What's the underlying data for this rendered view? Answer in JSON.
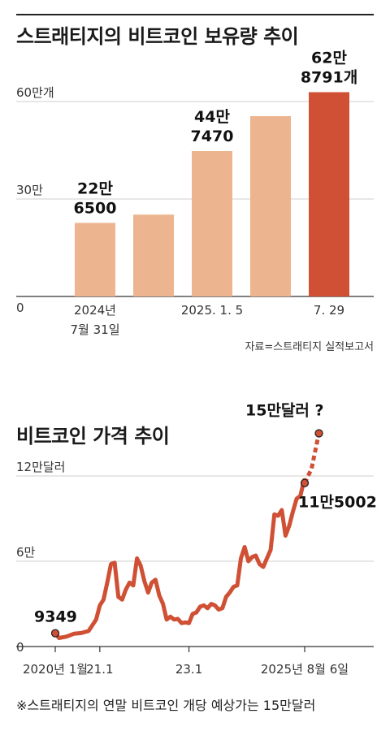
{
  "chart_data": [
    {
      "type": "bar",
      "title": "스트래티지의 비트코인 보유량 추이",
      "source": "자료=스트래티지 실적보고서",
      "y_ticks": [
        "0",
        "30만",
        "60만개"
      ],
      "y_tick_values": [
        0,
        300000,
        600000
      ],
      "ylim": [
        0,
        700000
      ],
      "grid": true,
      "categories": [
        "2024년 7월 31일",
        "",
        "2025. 1. 5",
        "",
        "7. 29"
      ],
      "x_labels": [
        [
          "2024년",
          "7월 31일"
        ],
        [
          ""
        ],
        [
          "2025. 1. 5"
        ],
        [
          ""
        ],
        [
          "7. 29"
        ]
      ],
      "values": [
        226500,
        252000,
        447470,
        555000,
        628791
      ],
      "data_labels": [
        [
          "22만",
          "6500"
        ],
        [],
        [
          "44만",
          "7470"
        ],
        [],
        [
          "62만",
          "8791개"
        ]
      ],
      "highlight_index": 4,
      "colors": {
        "bar": "#ecb590",
        "highlight": "#cf5034"
      }
    },
    {
      "type": "line",
      "title": "비트코인 가격 추이",
      "y_ticks": [
        "0",
        "6만",
        "12만달러"
      ],
      "y_tick_values": [
        0,
        60000,
        120000
      ],
      "ylim": [
        0,
        135000
      ],
      "grid": true,
      "x_ticks": [
        "2020년 1월",
        "21.1",
        "23.1",
        "2025년 8월 6일"
      ],
      "x_tick_values": [
        "2020-01",
        "2021-01",
        "2023-01",
        "2025-08-06"
      ],
      "annotations": [
        {
          "x": "2020-01",
          "y": 9349,
          "text": "9349"
        },
        {
          "x": "2025-08-06",
          "y": 115002,
          "text": "11만5002"
        },
        {
          "x": "2025-12",
          "y": 150000,
          "text": "15만달러 ?",
          "projected": true
        }
      ],
      "series": [
        {
          "values": [
            [
              "2020-01",
              9349
            ],
            [
              "2020-02",
              6000
            ],
            [
              "2020-04",
              7000
            ],
            [
              "2020-06",
              9000
            ],
            [
              "2020-08",
              9500
            ],
            [
              "2020-10",
              11000
            ],
            [
              "2020-12",
              19000
            ],
            [
              "2021-01",
              29000
            ],
            [
              "2021-02",
              33000
            ],
            [
              "2021-03",
              45000
            ],
            [
              "2021-04",
              58000
            ],
            [
              "2021-05",
              59000
            ],
            [
              "2021-06",
              35000
            ],
            [
              "2021-07",
              33000
            ],
            [
              "2021-08",
              40000
            ],
            [
              "2021-09",
              45000
            ],
            [
              "2021-10",
              43000
            ],
            [
              "2021-11",
              62000
            ],
            [
              "2021-12",
              57000
            ],
            [
              "2022-01",
              46000
            ],
            [
              "2022-02",
              38000
            ],
            [
              "2022-03",
              45000
            ],
            [
              "2022-04",
              47000
            ],
            [
              "2022-05",
              36000
            ],
            [
              "2022-06",
              30000
            ],
            [
              "2022-07",
              19000
            ],
            [
              "2022-08",
              21000
            ],
            [
              "2022-09",
              19000
            ],
            [
              "2022-10",
              19500
            ],
            [
              "2022-11",
              16500
            ],
            [
              "2022-12",
              17000
            ],
            [
              "2023-01",
              16500
            ],
            [
              "2023-02",
              23000
            ],
            [
              "2023-03",
              24000
            ],
            [
              "2023-04",
              28000
            ],
            [
              "2023-05",
              29000
            ],
            [
              "2023-06",
              27000
            ],
            [
              "2023-07",
              30000
            ],
            [
              "2023-08",
              29000
            ],
            [
              "2023-09",
              26000
            ],
            [
              "2023-10",
              27000
            ],
            [
              "2023-11",
              35000
            ],
            [
              "2023-12",
              38000
            ],
            [
              "2024-01",
              42000
            ],
            [
              "2024-02",
              43000
            ],
            [
              "2024-03",
              62000
            ],
            [
              "2024-04",
              70000
            ],
            [
              "2024-05",
              60000
            ],
            [
              "2024-06",
              63000
            ],
            [
              "2024-07",
              64000
            ],
            [
              "2024-08",
              58000
            ],
            [
              "2024-09",
              56000
            ],
            [
              "2024-10",
              62000
            ],
            [
              "2024-11",
              68000
            ],
            [
              "2024-12",
              93000
            ],
            [
              "2025-01",
              92000
            ],
            [
              "2025-02",
              96000
            ],
            [
              "2025-03",
              78000
            ],
            [
              "2025-04",
              85000
            ],
            [
              "2025-05",
              95000
            ],
            [
              "2025-06",
              104000
            ],
            [
              "2025-07",
              106000
            ],
            [
              "2025-08",
              117000
            ],
            [
              "2025-08-06",
              115002
            ]
          ]
        },
        {
          "projected": true,
          "values": [
            [
              "2025-08-06",
              115002
            ],
            [
              "2025-10",
              125000
            ],
            [
              "2025-12",
              150000
            ]
          ]
        }
      ],
      "colors": {
        "line": "#cf5034",
        "marker": "#cf5034",
        "marker_stroke": "#222222"
      }
    }
  ],
  "footnote": "※스트래티지의 연말 비트코인 개당 예상가는 15만달러"
}
